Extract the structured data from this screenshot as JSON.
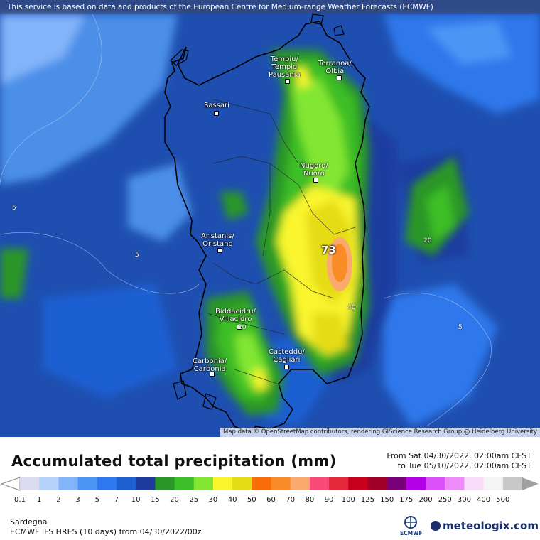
{
  "disclaimer": "This service is based on data and products of the European Centre for Medium-range Weather Forecasts (ECMWF)",
  "attribution": "Map data © OpenStreetMap contributors, rendering GIScience Research Group @ Heidelberg University",
  "cities": [
    {
      "name": "Tempiu/\nTempio\nPausania"
    },
    {
      "name": "Terranoa/\nOlbia"
    },
    {
      "name": "Sassari"
    },
    {
      "name": "Nugoro/\nNuoro"
    },
    {
      "name": "Aristanis/\nOristano"
    },
    {
      "name": "Biddacidru/\nVillacidro"
    },
    {
      "name": "Casteddu/\nCagliari"
    },
    {
      "name": "Carbonia/\nCarbonia"
    }
  ],
  "isolines": [
    "5",
    "5",
    "20",
    "40",
    "5",
    "20"
  ],
  "max_value": "73",
  "legend": {
    "title": "Accumulated total precipitation (mm)",
    "from": "From Sat 04/30/2022, 02:00am CEST",
    "to": "to Tue 05/10/2022, 02:00am CEST",
    "ticks": [
      "0.1",
      "1",
      "2",
      "3",
      "5",
      "7",
      "10",
      "15",
      "20",
      "25",
      "30",
      "40",
      "50",
      "60",
      "70",
      "80",
      "90",
      "100",
      "125",
      "150",
      "175",
      "200",
      "250",
      "300",
      "400",
      "500"
    ],
    "colors": [
      "#dcdcf0",
      "#b4d2fa",
      "#82b4fa",
      "#4b96f5",
      "#2d78ec",
      "#1e5fd2",
      "#1e3ca0",
      "#2a9628",
      "#3cbe28",
      "#82e632",
      "#faf52d",
      "#e6dc14",
      "#fa6e0a",
      "#fa8c28",
      "#faaa6e",
      "#fa4b78",
      "#e6283c",
      "#c8001e",
      "#a00028",
      "#780078",
      "#b400e6",
      "#dc50fa",
      "#f08cfa",
      "#fadcfa",
      "#f5f5f5",
      "#c8c8c8"
    ],
    "region": "Sardegna",
    "model": "ECMWF IFS HRES (10 days) from 04/30/2022/00z",
    "ecmwf_logo_text": "ECMWF",
    "brand": "meteologix.com"
  }
}
